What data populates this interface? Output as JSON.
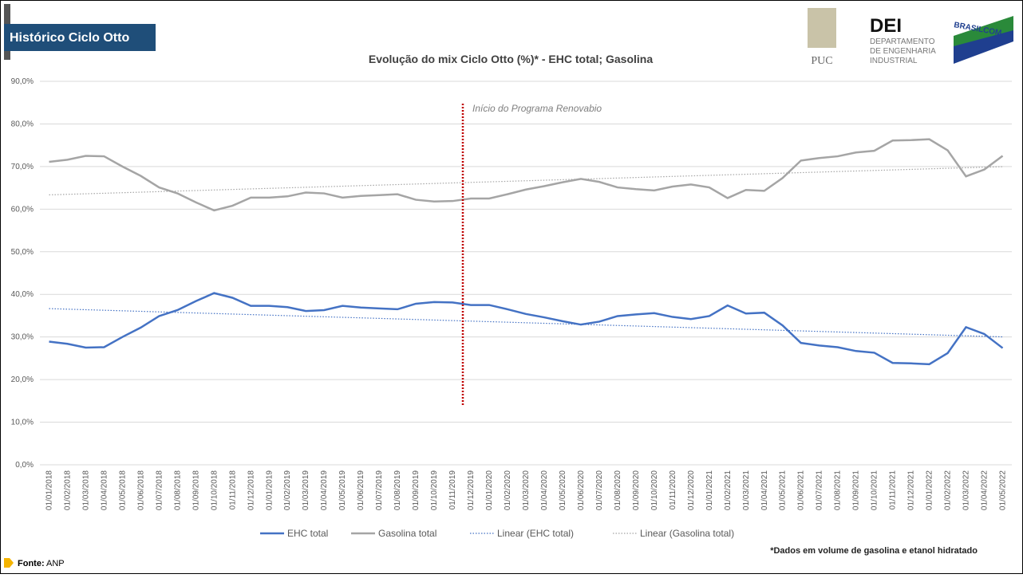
{
  "header": {
    "title": "Histórico Ciclo Otto"
  },
  "logos": {
    "puc": "PUC",
    "dei": "DEI",
    "dei_sub": [
      "DEPARTAMENTO",
      "DE ENGENHARIA",
      "INDUSTRIAL"
    ],
    "brasilcom": "BRASILCOM"
  },
  "chart_data": {
    "type": "line",
    "title": "Evolução do mix Ciclo Otto (%)* - EHC total; Gasolina",
    "categories": [
      "01/01/2018",
      "01/02/2018",
      "01/03/2018",
      "01/04/2018",
      "01/05/2018",
      "01/06/2018",
      "01/07/2018",
      "01/08/2018",
      "01/09/2018",
      "01/10/2018",
      "01/11/2018",
      "01/12/2018",
      "01/01/2019",
      "01/02/2019",
      "01/03/2019",
      "01/04/2019",
      "01/05/2019",
      "01/06/2019",
      "01/07/2019",
      "01/08/2019",
      "01/09/2019",
      "01/10/2019",
      "01/11/2019",
      "01/12/2019",
      "01/01/2020",
      "01/02/2020",
      "01/03/2020",
      "01/04/2020",
      "01/05/2020",
      "01/06/2020",
      "01/07/2020",
      "01/08/2020",
      "01/09/2020",
      "01/10/2020",
      "01/11/2020",
      "01/12/2020",
      "01/01/2021",
      "01/02/2021",
      "01/03/2021",
      "01/04/2021",
      "01/05/2021",
      "01/06/2021",
      "01/07/2021",
      "01/08/2021",
      "01/09/2021",
      "01/10/2021",
      "01/11/2021",
      "01/12/2021",
      "01/01/2022",
      "01/02/2022",
      "01/03/2022",
      "01/04/2022",
      "01/05/2022"
    ],
    "series": [
      {
        "name": "EHC total",
        "color": "#4472c4",
        "values": [
          28.9,
          28.4,
          27.5,
          27.6,
          30.0,
          32.2,
          34.9,
          36.3,
          38.4,
          40.3,
          39.2,
          37.3,
          37.3,
          37.0,
          36.1,
          36.3,
          37.3,
          36.9,
          36.7,
          36.5,
          37.8,
          38.2,
          38.1,
          37.5,
          37.5,
          36.5,
          35.4,
          34.6,
          33.7,
          32.9,
          33.6,
          34.9,
          35.3,
          35.6,
          34.7,
          34.2,
          34.9,
          37.4,
          35.5,
          35.7,
          32.7,
          28.6,
          28.0,
          27.6,
          26.7,
          26.3,
          23.9,
          23.8,
          23.6,
          26.2,
          32.3,
          30.7,
          27.4
        ]
      },
      {
        "name": "Gasolina total",
        "color": "#a5a5a5",
        "values": [
          71.1,
          71.6,
          72.5,
          72.4,
          70.0,
          67.8,
          65.1,
          63.7,
          61.6,
          59.7,
          60.8,
          62.7,
          62.7,
          63.0,
          63.9,
          63.7,
          62.7,
          63.1,
          63.3,
          63.5,
          62.2,
          61.8,
          61.9,
          62.5,
          62.5,
          63.5,
          64.6,
          65.4,
          66.3,
          67.1,
          66.4,
          65.1,
          64.7,
          64.4,
          65.3,
          65.8,
          65.1,
          62.6,
          64.5,
          64.3,
          67.3,
          71.4,
          72.0,
          72.4,
          73.3,
          73.7,
          76.1,
          76.2,
          76.4,
          73.8,
          67.7,
          69.3,
          72.5
        ]
      }
    ],
    "trendlines": [
      {
        "name": "Linear (EHC total)",
        "color": "#4472c4"
      },
      {
        "name": "Linear (Gasolina total)",
        "color": "#a5a5a5"
      }
    ],
    "ylim": [
      0,
      90
    ],
    "yticks": [
      {
        "value": 0,
        "label": "0,0%"
      },
      {
        "value": 10,
        "label": "10,0%"
      },
      {
        "value": 20,
        "label": "20,0%"
      },
      {
        "value": 30,
        "label": "30,0%"
      },
      {
        "value": 40,
        "label": "40,0%"
      },
      {
        "value": 50,
        "label": "50,0%"
      },
      {
        "value": 60,
        "label": "60,0%"
      },
      {
        "value": 70,
        "label": "70,0%"
      },
      {
        "value": 80,
        "label": "80,0%"
      },
      {
        "value": 90,
        "label": "90,0%"
      }
    ],
    "grid": true,
    "annotation": "Início do Programa Renovabio",
    "footnote": "*Dados em volume de gasolina e etanol hidratado"
  },
  "source": {
    "label": "Fonte:",
    "text": "ANP"
  }
}
